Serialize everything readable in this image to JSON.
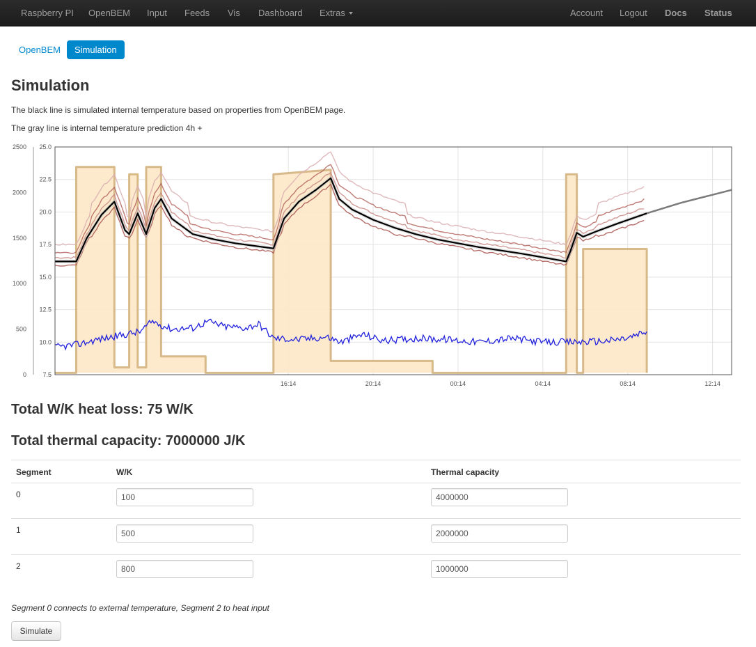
{
  "navbar": {
    "left_items": [
      "Raspberry PI",
      "OpenBEM",
      "Input",
      "Feeds",
      "Vis",
      "Dashboard",
      "Extras"
    ],
    "right_items": [
      "Account",
      "Logout",
      "Docs",
      "Status"
    ]
  },
  "pills": {
    "openbem": "OpenBEM",
    "simulation": "Simulation"
  },
  "page": {
    "title": "Simulation",
    "desc_black": "The black line is simulated internal temperature based on properties from OpenBEM page.",
    "desc_gray": "The gray line is internal temperature prediction 4h +"
  },
  "summary": {
    "heat_loss": "Total W/K heat loss: 75 W/K",
    "thermal_capacity": "Total thermal capacity: 7000000 J/K"
  },
  "table": {
    "headers": [
      "Segment",
      "W/K",
      "Thermal capacity"
    ],
    "rows": [
      {
        "segment": "0",
        "wk": "100",
        "capacity": "4000000"
      },
      {
        "segment": "1",
        "wk": "500",
        "capacity": "2000000"
      },
      {
        "segment": "2",
        "wk": "800",
        "capacity": "1000000"
      }
    ],
    "note": "Segment 0 connects to external temperature, Segment 2 to heat input",
    "simulate_label": "Simulate"
  },
  "colors": {
    "accent": "#0088cc",
    "navbar": "#1b1b1b",
    "heat_fill": "#fde8c7",
    "heat_line": "#d8b98a",
    "sim_line": "#000000",
    "pred_line": "#7a7a7a",
    "measured_lines": "#b5655e",
    "outside_line": "#2222dd"
  },
  "chart_data": {
    "type": "line",
    "x_ticks": [
      "16:14",
      "20:14",
      "00:14",
      "04:14",
      "08:14",
      "12:14"
    ],
    "y_left_ticks": [
      "0",
      "500",
      "1000",
      "1500",
      "2000",
      "2500"
    ],
    "y_left_range": [
      0,
      2500
    ],
    "y_right_ticks": [
      "7.5",
      "10.0",
      "12.5",
      "15.0",
      "17.5",
      "20.0",
      "22.5",
      "25.0"
    ],
    "y_right_range": [
      7.5,
      25
    ],
    "grid": true,
    "series": [
      {
        "kind": "heat_input_area",
        "axis": "left",
        "points": [
          [
            0,
            20
          ],
          [
            1,
            20
          ],
          [
            1,
            2280
          ],
          [
            2.8,
            2280
          ],
          [
            2.8,
            2250
          ],
          [
            2.8,
            80
          ],
          [
            3.5,
            80
          ],
          [
            3.5,
            2200
          ],
          [
            3.9,
            2200
          ],
          [
            3.9,
            80
          ],
          [
            4.3,
            80
          ],
          [
            4.3,
            2280
          ],
          [
            5,
            2280
          ],
          [
            5,
            200
          ],
          [
            7.1,
            200
          ],
          [
            7.1,
            20
          ],
          [
            10.3,
            20
          ],
          [
            10.3,
            2200
          ],
          [
            13,
            2250
          ],
          [
            13,
            150
          ],
          [
            17.8,
            150
          ],
          [
            17.8,
            20
          ],
          [
            24.1,
            20
          ],
          [
            24.1,
            2200
          ],
          [
            24.6,
            2200
          ],
          [
            24.6,
            20
          ],
          [
            24.9,
            20
          ],
          [
            24.9,
            1380
          ],
          [
            27.9,
            1380
          ],
          [
            27.9,
            20
          ]
        ]
      },
      {
        "kind": "simulated_internal_temperature",
        "axis": "right",
        "points": [
          [
            0,
            16.2
          ],
          [
            1,
            16.2
          ],
          [
            1.5,
            18
          ],
          [
            2.2,
            19.8
          ],
          [
            2.8,
            20.8
          ],
          [
            3.3,
            18.6
          ],
          [
            3.5,
            18.3
          ],
          [
            3.9,
            19.9
          ],
          [
            4.3,
            18.3
          ],
          [
            4.7,
            20.3
          ],
          [
            5,
            21
          ],
          [
            5.5,
            19.5
          ],
          [
            6.5,
            18.3
          ],
          [
            7.5,
            17.9
          ],
          [
            8.5,
            17.6
          ],
          [
            10.3,
            17.2
          ],
          [
            10.8,
            19.5
          ],
          [
            11.5,
            20.8
          ],
          [
            12.3,
            21.7
          ],
          [
            13,
            22.6
          ],
          [
            13.4,
            21
          ],
          [
            14,
            20.2
          ],
          [
            15,
            19.4
          ],
          [
            16,
            18.8
          ],
          [
            17,
            18.3
          ],
          [
            18,
            17.9
          ],
          [
            20,
            17.3
          ],
          [
            22,
            16.8
          ],
          [
            24.1,
            16.2
          ],
          [
            24.3,
            17
          ],
          [
            24.6,
            18.4
          ],
          [
            24.9,
            18.1
          ],
          [
            25.5,
            18.5
          ],
          [
            26.5,
            19.1
          ],
          [
            27.9,
            19.9
          ]
        ]
      },
      {
        "kind": "prediction_4h",
        "axis": "right",
        "points": [
          [
            27.9,
            19.9
          ],
          [
            29.5,
            20.7
          ],
          [
            31.9,
            21.7
          ]
        ]
      },
      {
        "kind": "measured_internal_temperatures",
        "axis": "right",
        "offsets": [
          0.3,
          0.7,
          1.3,
          -0.3
        ]
      },
      {
        "kind": "outside_temperature",
        "axis": "right",
        "points": [
          [
            0,
            9.6
          ],
          [
            1,
            9.8
          ],
          [
            2,
            10.2
          ],
          [
            3,
            10.5
          ],
          [
            4,
            10.8
          ],
          [
            4.6,
            11.6
          ],
          [
            5.5,
            11
          ],
          [
            6.5,
            11.1
          ],
          [
            7.2,
            11.6
          ],
          [
            8,
            11.2
          ],
          [
            9,
            11.1
          ],
          [
            9.6,
            11.4
          ],
          [
            10.3,
            10.3
          ],
          [
            11.5,
            10.2
          ],
          [
            12.8,
            10.4
          ],
          [
            13.5,
            10.0
          ],
          [
            14.5,
            10.6
          ],
          [
            15.5,
            10.1
          ],
          [
            17,
            10.3
          ],
          [
            18.5,
            10.2
          ],
          [
            20,
            10.0
          ],
          [
            21.5,
            10.3
          ],
          [
            23,
            10.0
          ],
          [
            24.5,
            10.0
          ],
          [
            26,
            10.1
          ],
          [
            27,
            10.3
          ],
          [
            27.9,
            10.8
          ]
        ]
      }
    ]
  }
}
